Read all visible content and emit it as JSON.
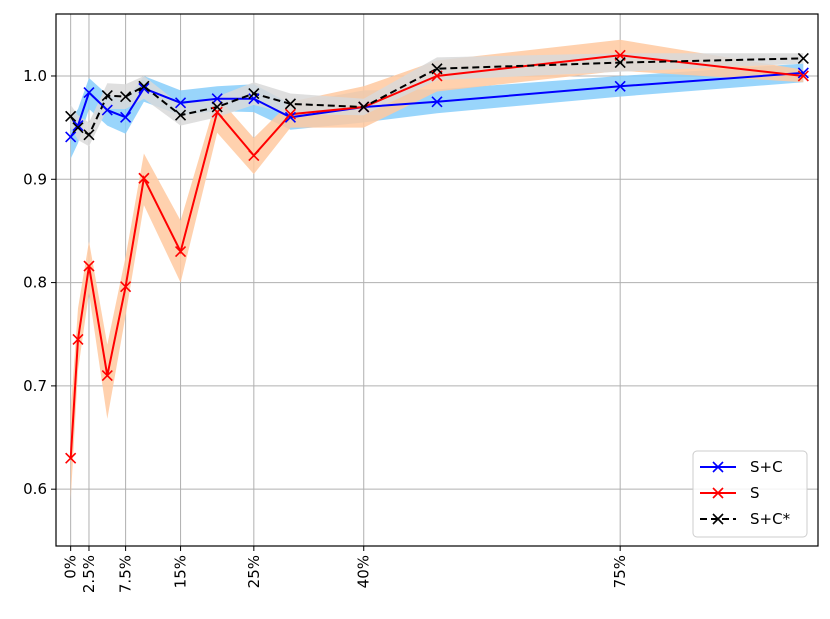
{
  "chart_data": {
    "type": "line",
    "title": "",
    "xlabel": "",
    "ylabel": "",
    "xlim": [
      -2.0,
      102.0
    ],
    "ylim": [
      0.545,
      1.06
    ],
    "grid": true,
    "legend_position": "lower-right",
    "x_tick_values": [
      0,
      2.5,
      7.5,
      15,
      25,
      40,
      75
    ],
    "x_tick_labels": [
      "0%",
      "2.5%",
      "7.5%",
      "15%",
      "25%",
      "40%",
      "75%"
    ],
    "y_tick_values": [
      0.6,
      0.7,
      0.8,
      0.9,
      1.0
    ],
    "y_tick_labels": [
      "0.6",
      "0.7",
      "0.8",
      "0.9",
      "1.0"
    ],
    "series": [
      {
        "name": "S+C",
        "color": "#0000ff",
        "band_color": "#87cefa",
        "line_style": "solid",
        "marker": "x",
        "x": [
          0,
          1,
          2.5,
          5,
          7.5,
          10,
          15,
          20,
          25,
          30,
          40,
          50,
          75,
          100
        ],
        "y": [
          0.941,
          0.952,
          0.984,
          0.967,
          0.96,
          0.988,
          0.974,
          0.978,
          0.978,
          0.96,
          0.97,
          0.975,
          0.99,
          1.003
        ],
        "lower": [
          0.92,
          0.935,
          0.968,
          0.952,
          0.944,
          0.975,
          0.962,
          0.966,
          0.965,
          0.948,
          0.955,
          0.964,
          0.98,
          0.994
        ],
        "upper": [
          0.958,
          0.968,
          0.998,
          0.982,
          0.976,
          1.0,
          0.986,
          0.99,
          0.992,
          0.973,
          0.986,
          0.987,
          1.0,
          1.012
        ]
      },
      {
        "name": "S",
        "color": "#ff0000",
        "band_color": "#ffc9a0",
        "line_style": "solid",
        "marker": "x",
        "x": [
          0,
          1,
          2.5,
          5,
          7.5,
          10,
          15,
          20,
          25,
          30,
          40,
          50,
          75,
          100
        ],
        "y": [
          0.63,
          0.745,
          0.816,
          0.71,
          0.796,
          0.901,
          0.83,
          0.965,
          0.923,
          0.963,
          0.97,
          1.0,
          1.02,
          1.0
        ],
        "lower": [
          0.59,
          0.715,
          0.79,
          0.668,
          0.768,
          0.875,
          0.8,
          0.945,
          0.905,
          0.95,
          0.95,
          0.985,
          1.005,
          0.994
        ],
        "upper": [
          0.675,
          0.775,
          0.84,
          0.74,
          0.825,
          0.925,
          0.86,
          0.98,
          0.94,
          0.975,
          0.99,
          1.015,
          1.035,
          1.006
        ]
      },
      {
        "name": "S+C*",
        "color": "#000000",
        "band_color": "#d9d9d9",
        "line_style": "dashed",
        "marker": "x",
        "x": [
          0,
          1,
          2.5,
          5,
          7.5,
          10,
          15,
          20,
          25,
          30,
          40,
          50,
          75,
          100
        ],
        "y": [
          0.961,
          0.95,
          0.943,
          0.981,
          0.98,
          0.99,
          0.962,
          0.97,
          0.983,
          0.973,
          0.97,
          1.007,
          1.013,
          1.017
        ],
        "lower": [
          0.95,
          0.938,
          0.932,
          0.968,
          0.968,
          0.978,
          0.952,
          0.96,
          0.972,
          0.963,
          0.962,
          0.996,
          1.004,
          1.012
        ],
        "upper": [
          0.972,
          0.962,
          0.955,
          0.993,
          0.992,
          1.0,
          0.972,
          0.98,
          0.994,
          0.983,
          0.978,
          1.018,
          1.022,
          1.022
        ]
      }
    ]
  }
}
